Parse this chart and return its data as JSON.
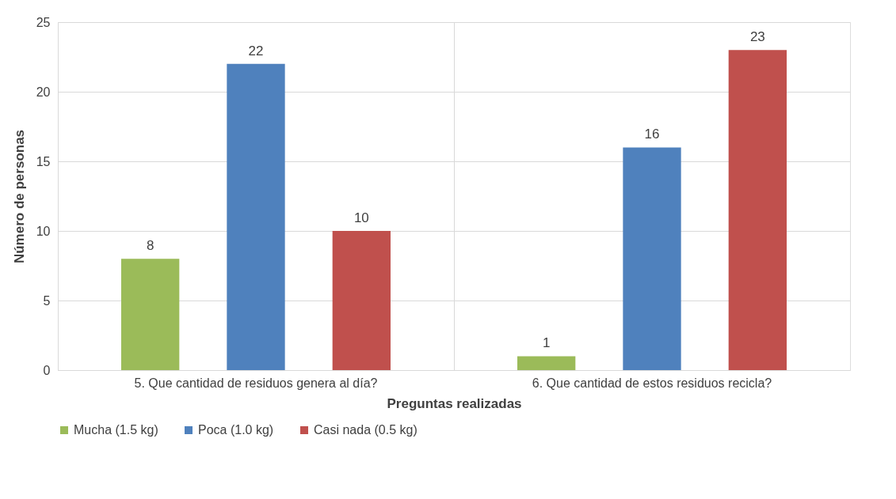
{
  "chart_data": {
    "type": "bar",
    "xlabel": "Preguntas realizadas",
    "ylabel": "Número de personas",
    "categories": [
      "5. Que cantidad de residuos genera al día?",
      "6. Que cantidad de estos residuos recicla?"
    ],
    "series": [
      {
        "name": "Mucha (1.5 kg)",
        "color": "#9bbb59",
        "values": [
          8,
          1
        ]
      },
      {
        "name": "Poca (1.0 kg)",
        "color": "#4f81bd",
        "values": [
          22,
          16
        ]
      },
      {
        "name": "Casi nada (0.5 kg)",
        "color": "#c0504d",
        "values": [
          10,
          23
        ]
      }
    ],
    "ylim": [
      0,
      25
    ],
    "yticks": [
      0,
      5,
      10,
      15,
      20,
      25
    ],
    "grid": true,
    "legend": "bottom",
    "data_labels": true
  }
}
